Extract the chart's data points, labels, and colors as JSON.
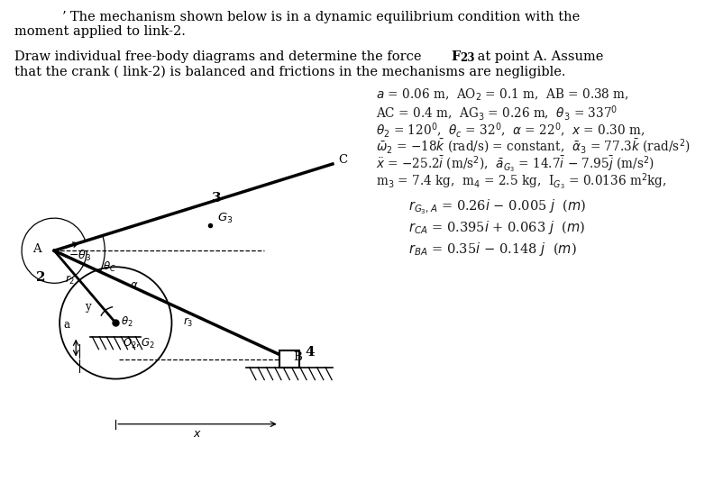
{
  "bg_color": "#ffffff",
  "text_color": "#000000",
  "blue_color": "#1a3a8c",
  "title1": " ʼ The mechanism shown below is in a dynamic equilibrium condition with the",
  "title2": "moment applied to link-2.",
  "para1": "Draw individual free-body diagrams and determine the force ",
  "para1b": "F",
  "para1s": "23",
  "para1r": " at point A. Assume",
  "para2": "that the crank ( link-2) is balanced and frictions in the mechanisms are negligible."
}
